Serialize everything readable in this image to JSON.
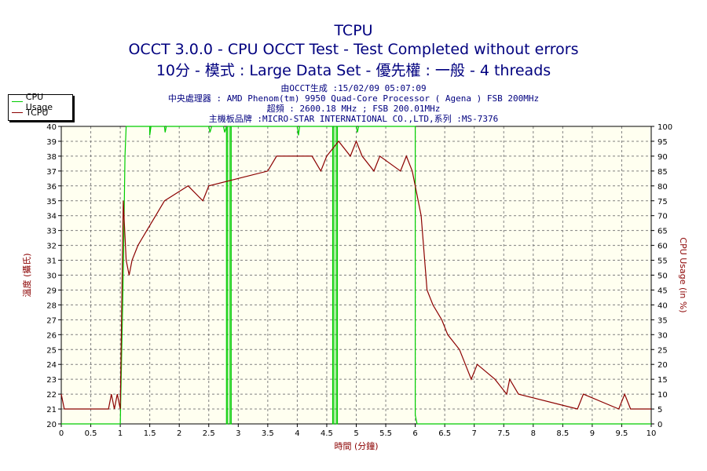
{
  "chart_data": {
    "type": "line",
    "title": "TCPU",
    "subtitle_lines": [
      "OCCT 3.0.0 - CPU OCCT Test - Test Completed without errors",
      "10分 - 模式 : Large Data Set - 優先權 : 一般 - 4 threads"
    ],
    "info_lines": [
      "由OCCT生成 :15/02/09 05:07:09",
      "中央處理器 : AMD Phenom(tm) 9950 Quad-Core Processor ( Agena ) FSB 200MHz",
      "超頻 : 2600.18 MHz ; FSB 200.01MHz",
      "主機板品牌 :MICRO-STAR INTERNATIONAL CO.,LTD,系列 :MS-7376"
    ],
    "xlabel": "時間 (分鐘)",
    "ylabel": "溫度 (攝氏)",
    "y2label": "CPU Usage (in %)",
    "xlim": [
      0,
      10
    ],
    "ylim": [
      20,
      40
    ],
    "y2lim": [
      0,
      100
    ],
    "x_ticks": [
      "0",
      "0.5",
      "1",
      "1.5",
      "2",
      "2.5",
      "3",
      "3.5",
      "4",
      "4.5",
      "5",
      "5.5",
      "6",
      "6.5",
      "7",
      "7.5",
      "8",
      "8.5",
      "9",
      "9.5",
      "10"
    ],
    "y_ticks": [
      "20",
      "21",
      "22",
      "23",
      "24",
      "25",
      "26",
      "27",
      "28",
      "29",
      "30",
      "31",
      "32",
      "33",
      "34",
      "35",
      "36",
      "37",
      "38",
      "39",
      "40"
    ],
    "y2_ticks": [
      "0",
      "5",
      "10",
      "15",
      "20",
      "25",
      "30",
      "35",
      "40",
      "45",
      "50",
      "55",
      "60",
      "65",
      "70",
      "75",
      "80",
      "85",
      "90",
      "95",
      "100"
    ],
    "grid": true,
    "legend_position": "top-left outside",
    "series": [
      {
        "name": "CPU Usage",
        "axis": "right",
        "color": "#00cc00",
        "points": [
          [
            0,
            0
          ],
          [
            1.0,
            0
          ],
          [
            1.05,
            50
          ],
          [
            1.08,
            90
          ],
          [
            1.1,
            100
          ],
          [
            1.5,
            100
          ],
          [
            1.5,
            97
          ],
          [
            1.52,
            100
          ],
          [
            1.75,
            100
          ],
          [
            1.76,
            98
          ],
          [
            1.78,
            100
          ],
          [
            2.5,
            100
          ],
          [
            2.52,
            98
          ],
          [
            2.55,
            100
          ],
          [
            2.75,
            100
          ],
          [
            2.77,
            98
          ],
          [
            2.8,
            100
          ],
          [
            2.8,
            0
          ],
          [
            2.82,
            0
          ],
          [
            2.82,
            100
          ],
          [
            2.86,
            100
          ],
          [
            2.86,
            0
          ],
          [
            2.88,
            0
          ],
          [
            2.88,
            100
          ],
          [
            4.0,
            100
          ],
          [
            4.02,
            97
          ],
          [
            4.04,
            100
          ],
          [
            4.6,
            100
          ],
          [
            4.6,
            0
          ],
          [
            4.62,
            0
          ],
          [
            4.62,
            100
          ],
          [
            4.66,
            100
          ],
          [
            4.66,
            0
          ],
          [
            4.68,
            0
          ],
          [
            4.68,
            100
          ],
          [
            5.0,
            100
          ],
          [
            5.02,
            98
          ],
          [
            5.04,
            100
          ],
          [
            6.0,
            100
          ],
          [
            6.0,
            3
          ],
          [
            6.03,
            0
          ],
          [
            10,
            0
          ]
        ]
      },
      {
        "name": "TCPU",
        "axis": "left",
        "color": "#8b0000",
        "points": [
          [
            0,
            22
          ],
          [
            0.05,
            21
          ],
          [
            0.8,
            21
          ],
          [
            0.85,
            22
          ],
          [
            0.9,
            21
          ],
          [
            0.95,
            22
          ],
          [
            1.0,
            21
          ],
          [
            1.05,
            35
          ],
          [
            1.1,
            31
          ],
          [
            1.15,
            30
          ],
          [
            1.2,
            31
          ],
          [
            1.3,
            32
          ],
          [
            1.45,
            33
          ],
          [
            1.6,
            34
          ],
          [
            1.75,
            35
          ],
          [
            2.15,
            36
          ],
          [
            2.4,
            35
          ],
          [
            2.5,
            36
          ],
          [
            3.5,
            37
          ],
          [
            3.65,
            38
          ],
          [
            4.25,
            38
          ],
          [
            4.4,
            37
          ],
          [
            4.5,
            38
          ],
          [
            4.7,
            39
          ],
          [
            4.9,
            38
          ],
          [
            5.0,
            39
          ],
          [
            5.1,
            38
          ],
          [
            5.3,
            37
          ],
          [
            5.4,
            38
          ],
          [
            5.75,
            37
          ],
          [
            5.85,
            38
          ],
          [
            5.95,
            37
          ],
          [
            6.1,
            34
          ],
          [
            6.2,
            29
          ],
          [
            6.3,
            28
          ],
          [
            6.45,
            27
          ],
          [
            6.55,
            26
          ],
          [
            6.75,
            25
          ],
          [
            6.85,
            24
          ],
          [
            6.95,
            23
          ],
          [
            7.05,
            24
          ],
          [
            7.35,
            23
          ],
          [
            7.55,
            22
          ],
          [
            7.6,
            23
          ],
          [
            7.75,
            22
          ],
          [
            8.75,
            21
          ],
          [
            8.85,
            22
          ],
          [
            9.45,
            21
          ],
          [
            9.55,
            22
          ],
          [
            9.65,
            21
          ],
          [
            10,
            21
          ]
        ]
      }
    ]
  }
}
